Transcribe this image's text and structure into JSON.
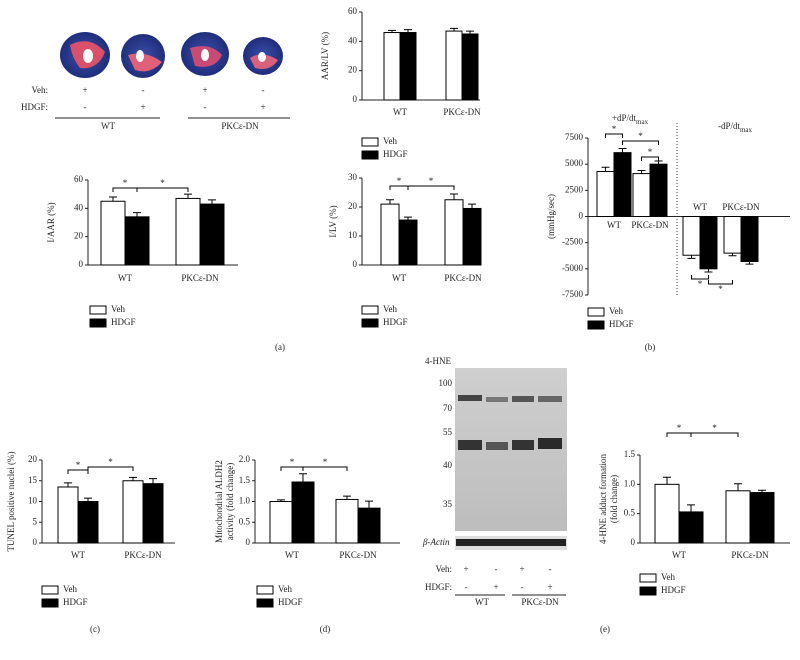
{
  "heart_panel": {
    "rows": [
      {
        "label": "Veh:",
        "marks": [
          "+",
          "-",
          "+",
          "-"
        ]
      },
      {
        "label": "HDGF:",
        "marks": [
          "-",
          "+",
          "-",
          "+"
        ]
      }
    ],
    "groups": [
      "WT",
      "PKCε-DN"
    ]
  },
  "blot_panel": {
    "title": "4-HNE",
    "markers": [
      "100",
      "70",
      "55",
      "40",
      "35"
    ],
    "loading": "β-Actin",
    "rows": [
      {
        "label": "Veh:",
        "marks": [
          "+",
          "-",
          "+",
          "-"
        ]
      },
      {
        "label": "HDGF:",
        "marks": [
          "-",
          "+",
          "-",
          "+"
        ]
      }
    ],
    "groups": [
      "WT",
      "PKCε-DN"
    ]
  },
  "panel_labels": [
    "(a)",
    "(b)",
    "(c)",
    "(d)",
    "(e)"
  ],
  "chart_data": [
    {
      "type": "bar",
      "ylabel": [
        "AAR/LV (%)"
      ],
      "categories": [
        "WT",
        "PKCε-DN"
      ],
      "ylim": [
        0,
        60
      ],
      "yticks": [
        0,
        20,
        40,
        60
      ],
      "series": [
        {
          "name": "Veh",
          "color": "#ffffff",
          "values": [
            46,
            47
          ],
          "errors": [
            1.5,
            1.8
          ]
        },
        {
          "name": "HDGF",
          "color": "#000000",
          "values": [
            46,
            45
          ],
          "errors": [
            2,
            2
          ]
        }
      ],
      "annotations": []
    },
    {
      "type": "bar",
      "ylabel": [
        "I/AAR (%)"
      ],
      "categories": [
        "WT",
        "PKCε-DN"
      ],
      "ylim": [
        0,
        60
      ],
      "yticks": [
        0,
        20,
        40,
        60
      ],
      "series": [
        {
          "name": "Veh",
          "color": "#ffffff",
          "values": [
            45,
            47
          ],
          "errors": [
            3,
            3
          ]
        },
        {
          "name": "HDGF",
          "color": "#000000",
          "values": [
            34,
            43
          ],
          "errors": [
            3,
            3
          ]
        }
      ],
      "annotations": [
        "*",
        "*"
      ]
    },
    {
      "type": "bar",
      "ylabel": [
        "I/LV (%)"
      ],
      "categories": [
        "WT",
        "PKCε-DN"
      ],
      "ylim": [
        0,
        30
      ],
      "yticks": [
        0,
        10,
        20,
        30
      ],
      "series": [
        {
          "name": "Veh",
          "color": "#ffffff",
          "values": [
            21,
            22.5
          ],
          "errors": [
            1.5,
            2
          ]
        },
        {
          "name": "HDGF",
          "color": "#000000",
          "values": [
            15.5,
            19.5
          ],
          "errors": [
            1,
            1.5
          ]
        }
      ],
      "annotations": [
        "*",
        "*"
      ]
    },
    {
      "type": "bar",
      "ylabel": [
        "(mmHg/sec)"
      ],
      "categories": [
        "WT",
        "PKCε-DN",
        "WT",
        "PKCε-DN"
      ],
      "group_titles": [
        {
          "text": "+dP/dt",
          "sub": "max"
        },
        {
          "text": "-dP/dt",
          "sub": "max"
        }
      ],
      "ylim": [
        -7500,
        7500
      ],
      "yticks": [
        -7500,
        -5000,
        -2500,
        0,
        2500,
        5000,
        7500
      ],
      "series": [
        {
          "name": "Veh",
          "color": "#ffffff",
          "values": [
            4300,
            4100,
            -3700,
            -3500
          ],
          "errors": [
            400,
            300,
            300,
            250
          ]
        },
        {
          "name": "HDGF",
          "color": "#000000",
          "values": [
            6100,
            5000,
            -5000,
            -4300
          ],
          "errors": [
            400,
            300,
            300,
            250
          ]
        }
      ],
      "annotations": [
        "*",
        "*",
        "*",
        "*",
        "*"
      ]
    },
    {
      "type": "bar",
      "ylabel": [
        "TUNEL positive nuclei (%)"
      ],
      "categories": [
        "WT",
        "PKCε-DN"
      ],
      "ylim": [
        0,
        20
      ],
      "yticks": [
        0,
        5,
        10,
        15,
        20
      ],
      "series": [
        {
          "name": "Veh",
          "color": "#ffffff",
          "values": [
            13.5,
            15
          ],
          "errors": [
            1,
            0.8
          ]
        },
        {
          "name": "HDGF",
          "color": "#000000",
          "values": [
            10,
            14.3
          ],
          "errors": [
            0.8,
            1.2
          ]
        }
      ],
      "annotations": [
        "*",
        "*"
      ]
    },
    {
      "type": "bar",
      "ylabel": [
        "Mitochondrial ALDH2",
        "activity (fold change)"
      ],
      "categories": [
        "WT",
        "PKCε-DN"
      ],
      "ylim": [
        0,
        2
      ],
      "yticks": [
        0,
        {
          "value": 0.5,
          "label": "0.5"
        },
        {
          "value": 1,
          "label": "1.0"
        },
        {
          "value": 1.5,
          "label": "1.5"
        },
        {
          "value": 2,
          "label": "2.0"
        }
      ],
      "series": [
        {
          "name": "Veh",
          "color": "#ffffff",
          "values": [
            1,
            1.05
          ],
          "errors": [
            0.04,
            0.08
          ]
        },
        {
          "name": "HDGF",
          "color": "#000000",
          "values": [
            1.47,
            0.84
          ],
          "errors": [
            0.2,
            0.17
          ]
        }
      ],
      "annotations": [
        "*",
        "*"
      ]
    },
    {
      "type": "bar",
      "ylabel": [
        "4-HNE adduct formation",
        "(fold change)"
      ],
      "categories": [
        "WT",
        "PKCε-DN"
      ],
      "ylim": [
        0,
        1.5
      ],
      "yticks": [
        0,
        {
          "value": 0.5,
          "label": "0.5"
        },
        {
          "value": 1,
          "label": "1.0"
        },
        {
          "value": 1.5,
          "label": "1.5"
        }
      ],
      "series": [
        {
          "name": "Veh",
          "color": "#ffffff",
          "values": [
            1,
            0.89
          ],
          "errors": [
            0.12,
            0.12
          ]
        },
        {
          "name": "HDGF",
          "color": "#000000",
          "values": [
            0.53,
            0.86
          ],
          "errors": [
            0.12,
            0.04
          ]
        }
      ],
      "annotations": [
        "*",
        "*"
      ]
    }
  ]
}
